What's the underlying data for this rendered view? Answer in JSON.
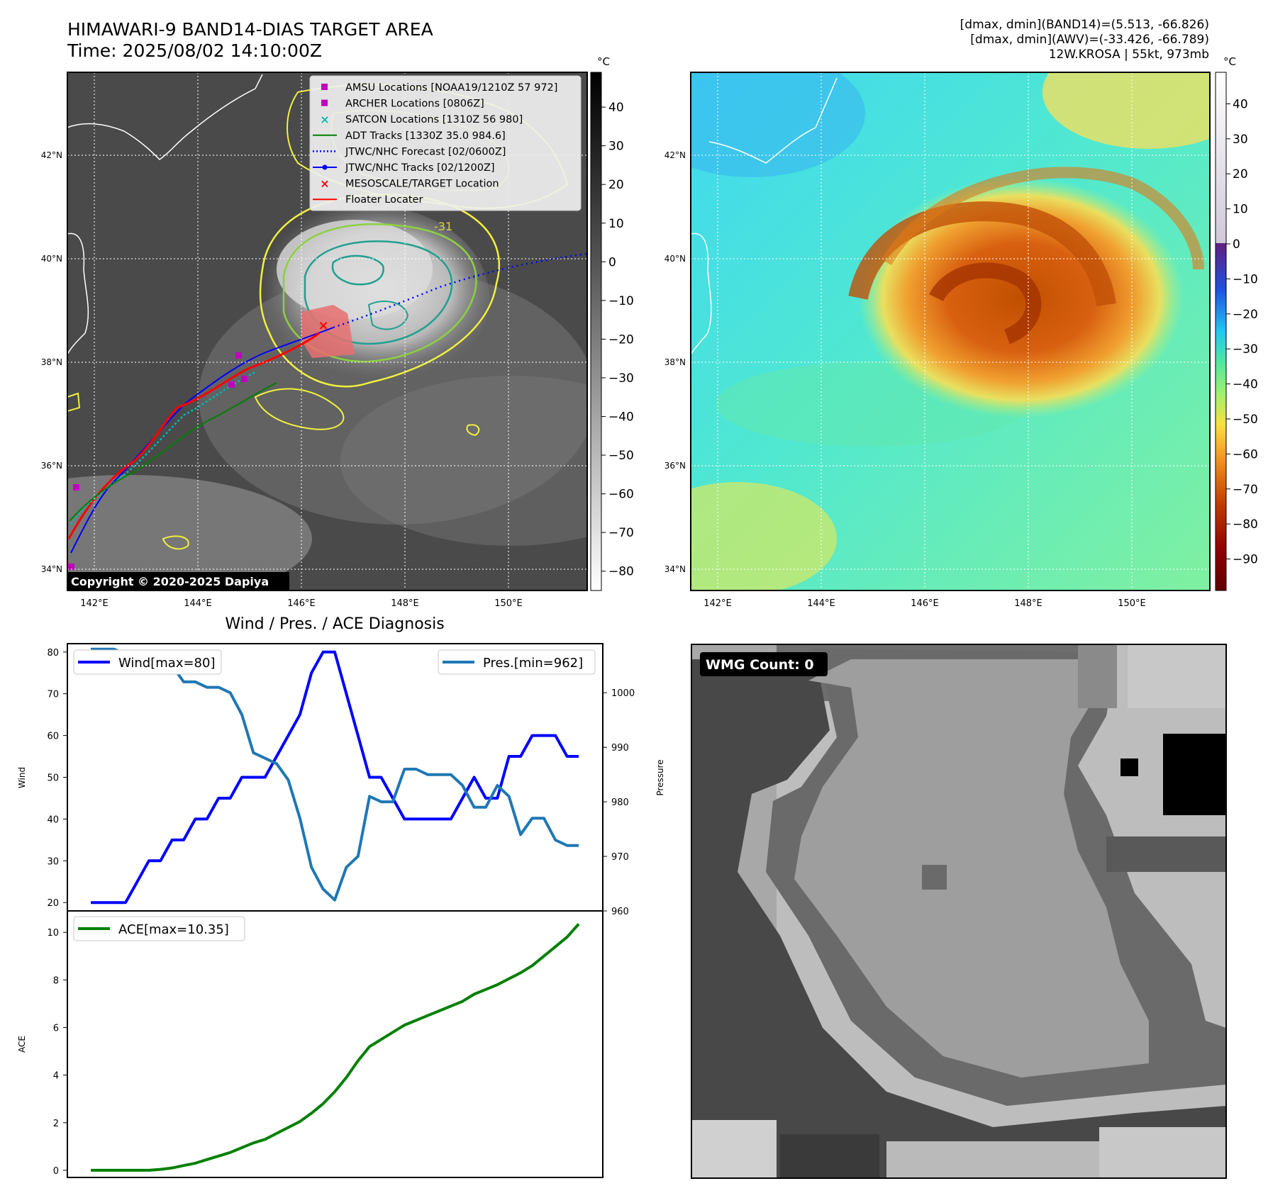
{
  "header": {
    "title": "HIMAWARI-9 BAND14-DIAS TARGET AREA",
    "time": "Time: 2025/08/02 14:10:00Z",
    "stats": [
      "[dmax, dmin](BAND14)=(5.513, -66.826)",
      "[dmax, dmin](AWV)=(-33.426, -66.789)",
      "12W.KROSA | 55kt, 973mb"
    ]
  },
  "map": {
    "lat_ticks": [
      "42°N",
      "40°N",
      "38°N",
      "36°N",
      "34°N"
    ],
    "lon_ticks": [
      "142°E",
      "144°E",
      "146°E",
      "148°E",
      "150°E"
    ],
    "contour_label": "-31",
    "copyright": "Copyright © 2020-2025 Dapiya",
    "legend": [
      {
        "label": "AMSU Locations [NOAA19/1210Z 57 972]",
        "marker": "square",
        "color": "#c000c0"
      },
      {
        "label": "ARCHER Locations [0806Z]",
        "marker": "square",
        "color": "#c000c0"
      },
      {
        "label": "SATCON Locations [1310Z 56 980]",
        "marker": "x",
        "color": "#00b8b8"
      },
      {
        "label": "ADT Tracks [1330Z 35.0 984.6]",
        "marker": "line",
        "color": "#008000"
      },
      {
        "label": "JTWC/NHC Forecast [02/0600Z]",
        "marker": "dotted",
        "color": "#0000ff"
      },
      {
        "label": "JTWC/NHC Tracks [02/1200Z]",
        "marker": "line-dot",
        "color": "#0000ff"
      },
      {
        "label": "MESOSCALE/TARGET Location",
        "marker": "x",
        "color": "#ff0000"
      },
      {
        "label": "Floater Locater",
        "marker": "line",
        "color": "#ff0000"
      }
    ],
    "colorbar_unit": "°C",
    "cbar_left_ticks": [
      "40",
      "30",
      "20",
      "10",
      "0",
      "−10",
      "−20",
      "−30",
      "−40",
      "−50",
      "−60",
      "−70",
      "−80"
    ],
    "cbar_right_ticks": [
      "40",
      "30",
      "20",
      "10",
      "0",
      "−10",
      "−20",
      "−30",
      "−40",
      "−50",
      "−60",
      "−70",
      "−80",
      "−90"
    ]
  },
  "wmg": {
    "label": "WMG Count: 0"
  },
  "chart_data": [
    {
      "type": "line",
      "title": "Wind / Pres. / ACE Diagnosis",
      "ylabel": "Wind",
      "ylabel_right": "Pressure",
      "ylim": [
        18,
        82
      ],
      "ylim_right": [
        960,
        1009
      ],
      "yticks": [
        20,
        30,
        40,
        50,
        60,
        70,
        80
      ],
      "yticks_right": [
        960,
        970,
        980,
        990,
        1000
      ],
      "series": [
        {
          "name": "Wind[max=80]",
          "color": "#0000ff",
          "axis": "left",
          "values": [
            20,
            20,
            20,
            20,
            25,
            30,
            30,
            35,
            35,
            40,
            40,
            45,
            45,
            50,
            50,
            50,
            55,
            60,
            65,
            75,
            80,
            80,
            70,
            60,
            50,
            50,
            45,
            40,
            40,
            40,
            40,
            40,
            45,
            50,
            45,
            45,
            55,
            55,
            60,
            60,
            60,
            55,
            55
          ]
        },
        {
          "name": "Pres.[min=962]",
          "color": "#1f77b4",
          "axis": "right",
          "values": [
            1008,
            1008,
            1008,
            1007,
            1006,
            1006,
            1005,
            1005,
            1002,
            1002,
            1001,
            1001,
            1000,
            996,
            989,
            988,
            987,
            984,
            977,
            968,
            964,
            962,
            968,
            970,
            981,
            980,
            980,
            986,
            986,
            985,
            985,
            985,
            983,
            979,
            979,
            983,
            981,
            974,
            977,
            977,
            973,
            972,
            972
          ]
        }
      ]
    },
    {
      "type": "line",
      "ylabel": "ACE",
      "ylim": [
        -0.3,
        10.9
      ],
      "yticks": [
        0,
        2,
        4,
        6,
        8,
        10
      ],
      "series": [
        {
          "name": "ACE[max=10.35]",
          "color": "#008000",
          "values": [
            0,
            0,
            0,
            0,
            0,
            0,
            0.04,
            0.1,
            0.2,
            0.3,
            0.45,
            0.6,
            0.75,
            0.95,
            1.15,
            1.3,
            1.55,
            1.8,
            2.05,
            2.4,
            2.8,
            3.3,
            3.9,
            4.6,
            5.2,
            5.5,
            5.8,
            6.1,
            6.3,
            6.5,
            6.7,
            6.9,
            7.1,
            7.4,
            7.6,
            7.8,
            8.05,
            8.3,
            8.6,
            9.0,
            9.4,
            9.8,
            10.35
          ]
        }
      ]
    }
  ]
}
